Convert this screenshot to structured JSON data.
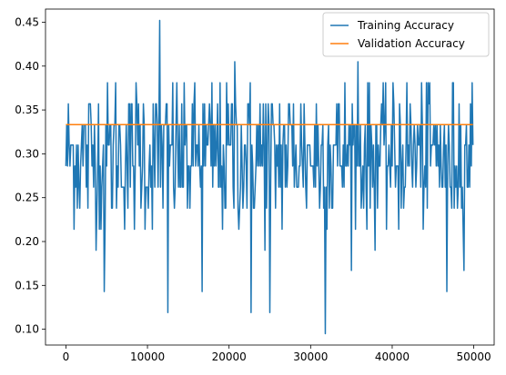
{
  "chart_data": {
    "type": "line",
    "title": "",
    "xlabel": "",
    "ylabel": "",
    "xlim": [
      -2500,
      52500
    ],
    "ylim": [
      0.082,
      0.465
    ],
    "xticks": [
      0,
      10000,
      20000,
      30000,
      40000,
      50000
    ],
    "xtick_labels": [
      "0",
      "10000",
      "20000",
      "30000",
      "40000",
      "50000"
    ],
    "yticks": [
      0.1,
      0.15,
      0.2,
      0.25,
      0.3,
      0.35,
      0.4,
      0.45
    ],
    "ytick_labels": [
      "0.10",
      "0.15",
      "0.20",
      "0.25",
      "0.30",
      "0.35",
      "0.40",
      "0.45"
    ],
    "grid": false,
    "legend_position": "top-right",
    "series": [
      {
        "name": "Training Accuracy",
        "color": "#1f77b4",
        "x_range": [
          0,
          49900
        ],
        "points": 500,
        "discrete_levels": [
          0.095,
          0.119,
          0.143,
          0.167,
          0.19,
          0.214,
          0.238,
          0.262,
          0.286,
          0.31,
          0.333,
          0.357,
          0.381,
          0.405,
          0.429,
          0.452
        ],
        "notable_points": [
          {
            "x": 11500,
            "y": 0.452
          },
          {
            "x": 20700,
            "y": 0.405
          },
          {
            "x": 35800,
            "y": 0.405
          },
          {
            "x": 12500,
            "y": 0.119
          },
          {
            "x": 22700,
            "y": 0.119
          },
          {
            "x": 25000,
            "y": 0.119
          },
          {
            "x": 31800,
            "y": 0.095
          },
          {
            "x": 4700,
            "y": 0.143
          },
          {
            "x": 16700,
            "y": 0.143
          },
          {
            "x": 46700,
            "y": 0.143
          }
        ],
        "mean": 0.3
      },
      {
        "name": "Validation Accuracy",
        "color": "#ff7f0e",
        "x": [
          0,
          49900
        ],
        "values": [
          0.3333,
          0.3333
        ]
      }
    ]
  }
}
